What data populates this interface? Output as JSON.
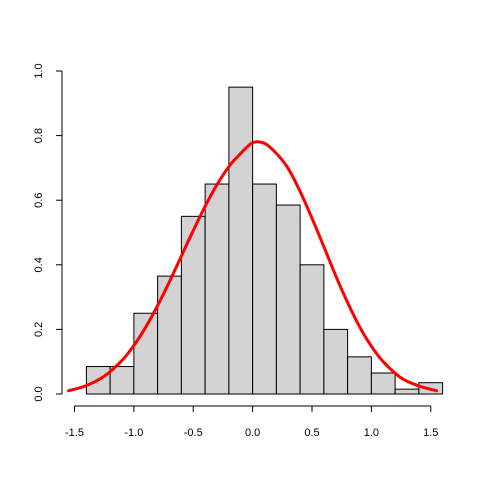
{
  "chart_data": {
    "type": "bar",
    "subtype": "histogram-with-density-curve",
    "bin_edges": [
      -1.4,
      -1.2,
      -1.0,
      -0.8,
      -0.6,
      -0.4,
      -0.2,
      0.0,
      0.2,
      0.4,
      0.6,
      0.8,
      1.0,
      1.2,
      1.4,
      1.6
    ],
    "values": [
      0.085,
      0.085,
      0.25,
      0.365,
      0.55,
      0.65,
      0.95,
      0.65,
      0.585,
      0.4,
      0.2,
      0.115,
      0.065,
      0.015,
      0.035
    ],
    "bar_fill": "#d3d3d3",
    "bar_stroke": "#000000",
    "curve_color": "#ff0000",
    "curve": {
      "x": [
        -1.55,
        -1.4,
        -1.25,
        -1.1,
        -1.0,
        -0.9,
        -0.8,
        -0.7,
        -0.6,
        -0.5,
        -0.4,
        -0.3,
        -0.2,
        -0.1,
        0.0,
        0.1,
        0.2,
        0.3,
        0.4,
        0.5,
        0.6,
        0.7,
        0.8,
        0.9,
        1.0,
        1.1,
        1.25,
        1.4,
        1.55
      ],
      "y": [
        0.01,
        0.026,
        0.055,
        0.104,
        0.15,
        0.207,
        0.274,
        0.348,
        0.427,
        0.506,
        0.581,
        0.648,
        0.704,
        0.745,
        0.778,
        0.776,
        0.745,
        0.698,
        0.627,
        0.544,
        0.456,
        0.366,
        0.283,
        0.209,
        0.148,
        0.1,
        0.05,
        0.025,
        0.01
      ]
    },
    "x_ticks": [
      "-1.5",
      "-1.0",
      "-0.5",
      "0.0",
      "0.5",
      "1.0",
      "1.5"
    ],
    "x_tick_values": [
      -1.5,
      -1.0,
      -0.5,
      0.0,
      0.5,
      1.0,
      1.5
    ],
    "y_ticks": [
      "0.0",
      "0.2",
      "0.4",
      "0.6",
      "0.8",
      "1.0"
    ],
    "y_tick_values": [
      0.0,
      0.2,
      0.4,
      0.6,
      0.8,
      1.0
    ],
    "xlim": [
      -1.55,
      1.6
    ],
    "ylim": [
      0,
      1.0
    ],
    "title": "",
    "xlabel": "",
    "ylabel": "",
    "grid": false,
    "legend": "none"
  }
}
